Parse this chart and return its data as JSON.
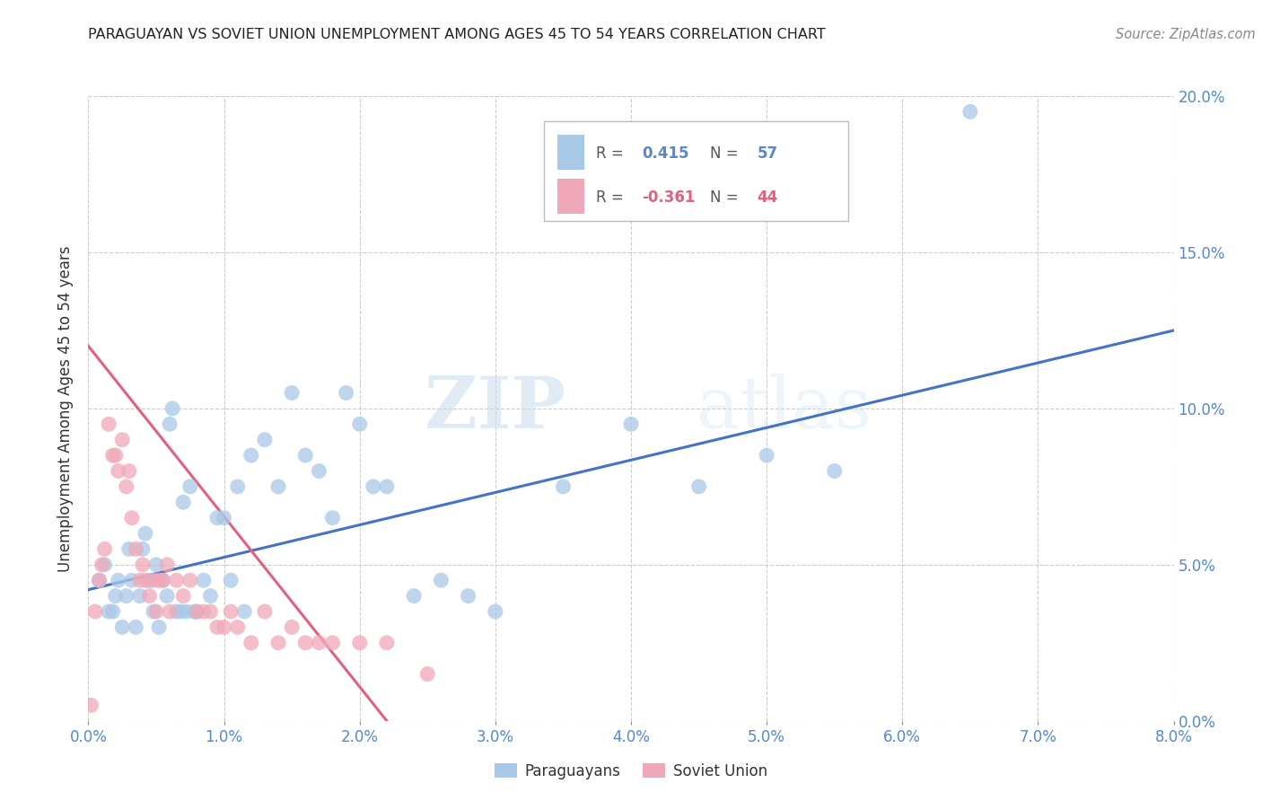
{
  "title": "PARAGUAYAN VS SOVIET UNION UNEMPLOYMENT AMONG AGES 45 TO 54 YEARS CORRELATION CHART",
  "source": "Source: ZipAtlas.com",
  "ylabel": "Unemployment Among Ages 45 to 54 years",
  "legend_blue_r_val": "0.415",
  "legend_blue_n_val": "57",
  "legend_pink_r_val": "-0.361",
  "legend_pink_n_val": "44",
  "legend_blue_label": "Paraguayans",
  "legend_pink_label": "Soviet Union",
  "blue_color": "#A8C8E8",
  "pink_color": "#F0A8B8",
  "blue_line_color": "#4472C4",
  "pink_line_color": "#E06080",
  "watermark_zip": "ZIP",
  "watermark_atlas": "atlas",
  "xlim": [
    0.0,
    8.0
  ],
  "ylim": [
    0.0,
    20.0
  ],
  "xticks": [
    0.0,
    1.0,
    2.0,
    3.0,
    4.0,
    5.0,
    6.0,
    7.0,
    8.0
  ],
  "yticks": [
    0.0,
    5.0,
    10.0,
    15.0,
    20.0
  ],
  "blue_x": [
    0.08,
    0.12,
    0.15,
    0.18,
    0.2,
    0.22,
    0.25,
    0.28,
    0.3,
    0.32,
    0.35,
    0.38,
    0.4,
    0.42,
    0.45,
    0.48,
    0.5,
    0.52,
    0.55,
    0.58,
    0.6,
    0.62,
    0.65,
    0.68,
    0.7,
    0.72,
    0.75,
    0.78,
    0.8,
    0.85,
    0.9,
    0.95,
    1.0,
    1.05,
    1.1,
    1.15,
    1.2,
    1.3,
    1.4,
    1.5,
    1.6,
    1.7,
    1.8,
    1.9,
    2.0,
    2.1,
    2.2,
    2.4,
    2.6,
    2.8,
    3.0,
    3.5,
    4.0,
    4.5,
    5.0,
    5.5,
    6.5
  ],
  "blue_y": [
    4.5,
    5.0,
    3.5,
    3.5,
    4.0,
    4.5,
    3.0,
    4.0,
    5.5,
    4.5,
    3.0,
    4.0,
    5.5,
    6.0,
    4.5,
    3.5,
    5.0,
    3.0,
    4.5,
    4.0,
    9.5,
    10.0,
    3.5,
    3.5,
    7.0,
    3.5,
    7.5,
    3.5,
    3.5,
    4.5,
    4.0,
    6.5,
    6.5,
    4.5,
    7.5,
    3.5,
    8.5,
    9.0,
    7.5,
    10.5,
    8.5,
    8.0,
    6.5,
    10.5,
    9.5,
    7.5,
    7.5,
    4.0,
    4.5,
    4.0,
    3.5,
    7.5,
    9.5,
    7.5,
    8.5,
    8.0,
    19.5
  ],
  "pink_x": [
    0.02,
    0.05,
    0.08,
    0.1,
    0.12,
    0.15,
    0.18,
    0.2,
    0.22,
    0.25,
    0.28,
    0.3,
    0.32,
    0.35,
    0.38,
    0.4,
    0.42,
    0.45,
    0.48,
    0.5,
    0.52,
    0.55,
    0.58,
    0.6,
    0.65,
    0.7,
    0.75,
    0.8,
    0.85,
    0.9,
    0.95,
    1.0,
    1.05,
    1.1,
    1.2,
    1.3,
    1.4,
    1.5,
    1.6,
    1.7,
    1.8,
    2.0,
    2.2,
    2.5
  ],
  "pink_y": [
    0.5,
    3.5,
    4.5,
    5.0,
    5.5,
    9.5,
    8.5,
    8.5,
    8.0,
    9.0,
    7.5,
    8.0,
    6.5,
    5.5,
    4.5,
    5.0,
    4.5,
    4.0,
    4.5,
    3.5,
    4.5,
    4.5,
    5.0,
    3.5,
    4.5,
    4.0,
    4.5,
    3.5,
    3.5,
    3.5,
    3.0,
    3.0,
    3.5,
    3.0,
    2.5,
    3.5,
    2.5,
    3.0,
    2.5,
    2.5,
    2.5,
    2.5,
    2.5,
    1.5
  ],
  "blue_line_x0": 0.0,
  "blue_line_y0": 4.2,
  "blue_line_x1": 8.0,
  "blue_line_y1": 12.5,
  "pink_line_x0": 0.0,
  "pink_line_y0": 12.0,
  "pink_line_x1": 2.2,
  "pink_line_y1": 0.0
}
